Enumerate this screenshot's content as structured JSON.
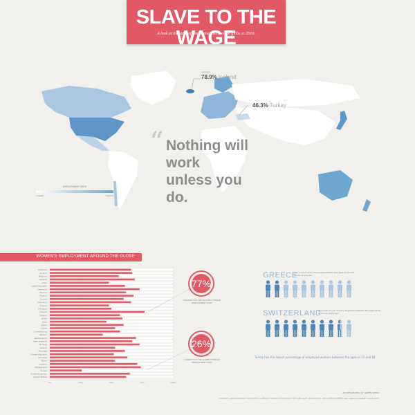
{
  "header": {
    "title": "SLAVE TO THE WAGE",
    "subtitle": "A look at the state of employment across the globe in 2010."
  },
  "callouts": {
    "iceland": {
      "pct": "78.9%",
      "label": "Iceland",
      "tiny": "HIGHEST"
    },
    "turkey": {
      "pct": "46.3%",
      "label": "Turkey"
    }
  },
  "quote": {
    "mark": "“",
    "line1": "Nothing will work",
    "line2": "unless you do."
  },
  "legend": {
    "title": "EMPLOYMENT RATE",
    "low": "Lowest",
    "high": "Highest"
  },
  "section": {
    "title": "WOMEN'S EMPLOYMENT AROUND THE GLOBE"
  },
  "colors": {
    "accent": "#e15965",
    "blue": "#6fa6cf",
    "background": "#f1f0ed"
  },
  "stats": {
    "high": {
      "value": "77%",
      "text": "ICELAND HAS THE HIGHEST FEMALE EMPLOYMENT RATE"
    },
    "low": {
      "value": "26%",
      "text": "TURKEY HAS THE LOWEST FEMALE EMPLOYMENT RATE"
    }
  },
  "greece": {
    "name": "GREECE",
    "note": "Just 2 out of every 10 people between the ages of 15 and 24 are employed.",
    "total": 10,
    "filled": 2
  },
  "switzerland": {
    "name": "SWITZERLAND",
    "note": "More than 8 out of every 10 people between the ages of 25 to 54 are employed.",
    "total": 10,
    "filled": 8.5
  },
  "footer": {
    "quote": "Turkey has the lowest percentage of employed workers between the ages of 25 and 64",
    "credit": "AN INFOGRAPHIC BY GREEN SHEEP",
    "source": "SOURCE: LABOUR MARKET STATISTICS, LABOUR FORCE STATISTICS BY SEX AND AGE: INDICATORS, OECD EMPLOYMENT AND LABOUR MARKET STATISTICS"
  },
  "chart_data": {
    "type": "bar",
    "orientation": "horizontal",
    "title": "WOMEN'S EMPLOYMENT AROUND THE GLOBE",
    "categories": [
      "Australia",
      "Austria",
      "Belgium",
      "Canada",
      "Chile",
      "Czech Republic",
      "Denmark",
      "Estonia",
      "Finland",
      "France",
      "Germany",
      "Greece",
      "Hungary",
      "Iceland",
      "Ireland",
      "Israel",
      "Italy",
      "Japan",
      "Korea",
      "Luxembourg",
      "Mexico",
      "Netherlands",
      "New Zealand",
      "Norway",
      "Poland",
      "Portugal",
      "Slovak Republic",
      "Slovenia",
      "Spain",
      "Sweden",
      "Switzerland",
      "Turkey",
      "United Kingdom",
      "United States"
    ],
    "values": [
      66,
      67,
      56,
      69,
      48,
      61,
      73,
      62,
      68,
      60,
      66,
      48,
      50,
      77,
      57,
      59,
      46,
      60,
      53,
      57,
      43,
      70,
      67,
      73,
      53,
      61,
      52,
      63,
      53,
      71,
      74,
      26,
      65,
      62
    ],
    "xticks": [
      "0%",
      "25%",
      "50%",
      "75%",
      "100%"
    ],
    "xlim": [
      0,
      100
    ],
    "grid": true
  }
}
